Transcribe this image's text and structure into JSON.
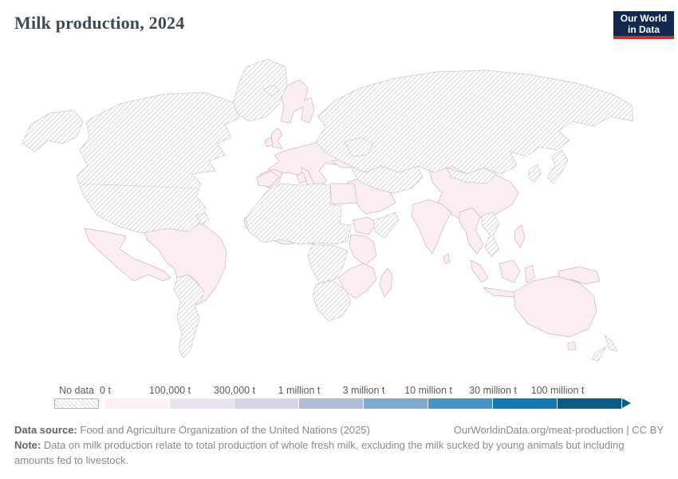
{
  "header": {
    "title": "Milk production, 2024",
    "logo_line1": "Our World",
    "logo_line2": "in Data"
  },
  "legend": {
    "no_data_label": "No data",
    "stops": [
      "0 t",
      "100,000 t",
      "300,000 t",
      "1 million t",
      "3 million t",
      "10 million t",
      "30 million t",
      "100 million t"
    ],
    "colors": [
      "#fdf1f6",
      "#e9e4f0",
      "#d7d5e6",
      "#b1bcd9",
      "#80aacd",
      "#4a94c4",
      "#1576b2",
      "#0d5a84"
    ]
  },
  "map": {
    "data_fill": "#faedf3",
    "data_stroke": "#d8b0c0",
    "nodata_stroke": "#c9c9c9"
  },
  "footer": {
    "data_source_label": "Data source:",
    "data_source_text": "Food and Agriculture Organization of the United Nations (2025)",
    "link_text": "OurWorldinData.org/meat-production | CC BY",
    "note_label": "Note:",
    "note_text": "Data on milk production relate to total production of whole fresh milk, excluding the milk sucked by young animals but including amounts fed to livestock."
  },
  "chart_data": {
    "type": "choropleth_map",
    "title": "Milk production, 2024",
    "unit": "tonnes (t)",
    "legend_bins": [
      {
        "label": "No data",
        "style": "diagonal-hatch"
      },
      {
        "label": "0 t",
        "color": "#fdf1f6"
      },
      {
        "label": "100,000 t",
        "color": "#e9e4f0"
      },
      {
        "label": "300,000 t",
        "color": "#d7d5e6"
      },
      {
        "label": "1 million t",
        "color": "#b1bcd9"
      },
      {
        "label": "3 million t",
        "color": "#80aacd"
      },
      {
        "label": "10 million t",
        "color": "#4a94c4"
      },
      {
        "label": "30 million t",
        "color": "#1576b2"
      },
      {
        "label": "100 million t",
        "color": "#0d5a84"
      }
    ],
    "observation": "All countries with reported data are rendered in the lightest (0 t) bin color; no country is shown in darker bins.",
    "regions_with_data_light_pink": [
      "Mexico",
      "Central America",
      "Caribbean",
      "Colombia",
      "Venezuela",
      "Ecuador",
      "Peru",
      "Brazil",
      "Europe",
      "United Kingdom",
      "Scandinavia",
      "Turkey",
      "Morocco",
      "Tunisia",
      "Egypt",
      "West Africa",
      "Ethiopia",
      "Kenya",
      "Tanzania",
      "Zambia",
      "Zimbabwe",
      "Mozambique",
      "Madagascar",
      "Middle East",
      "Iran",
      "India",
      "China",
      "Myanmar",
      "Thailand",
      "Sri Lanka",
      "Indonesia",
      "Philippines",
      "Papua New Guinea",
      "Australia"
    ],
    "regions_no_data_hatched": [
      "Canada",
      "United States",
      "Alaska",
      "Greenland",
      "Iceland",
      "Russia",
      "Ukraine",
      "Kazakhstan",
      "Central Asia",
      "Mongolia",
      "Japan",
      "South Korea",
      "Vietnam",
      "Laos",
      "Algeria",
      "Libya",
      "Mauritania",
      "Mali",
      "Niger",
      "Chad",
      "Sudan",
      "Somalia",
      "DR Congo",
      "Angola",
      "Namibia",
      "Botswana",
      "South Africa",
      "Bolivia",
      "Chile",
      "Argentina",
      "Paraguay",
      "Uruguay",
      "Guyana",
      "Suriname",
      "New Zealand"
    ],
    "source": "Food and Agriculture Organization of the United Nations (2025)"
  }
}
